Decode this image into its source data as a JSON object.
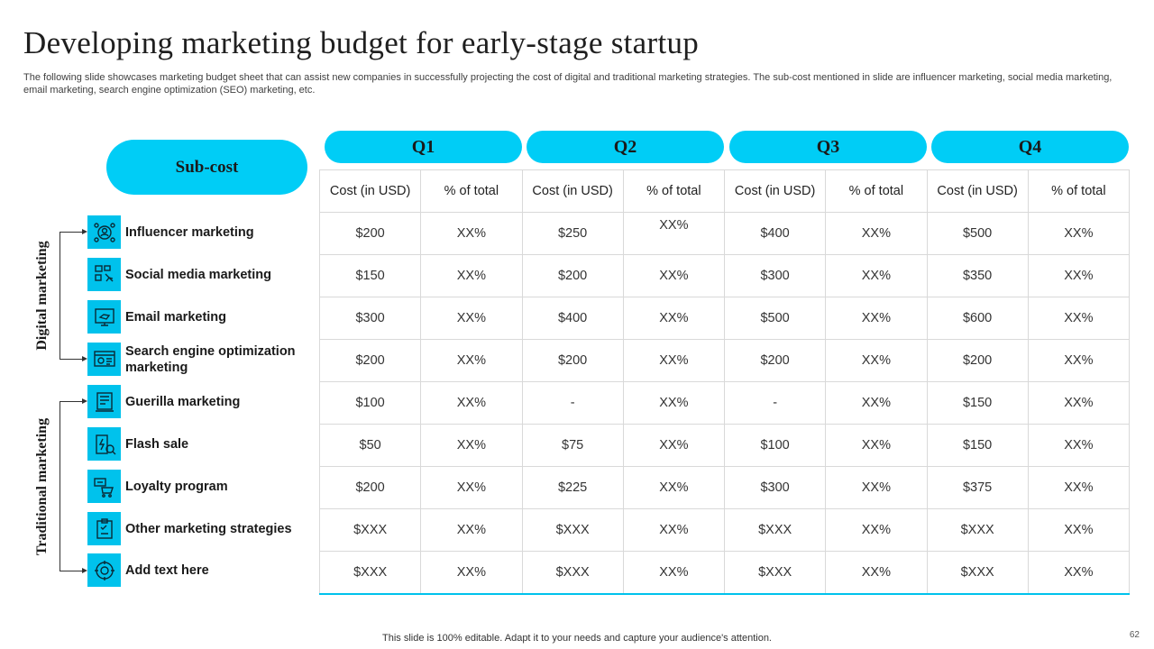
{
  "title": "Developing marketing budget for early-stage startup",
  "subtitle": "The following slide showcases marketing budget sheet that can assist new companies in successfully projecting the cost of digital and traditional marketing strategies. The sub-cost mentioned in slide are influencer marketing, social media marketing, email marketing, search engine optimization (SEO) marketing, etc.",
  "subcost_label": "Sub-cost",
  "quarters": [
    "Q1",
    "Q2",
    "Q3",
    "Q4"
  ],
  "column_headers": {
    "cost": "Cost (in USD)",
    "pct": "% of total"
  },
  "groups": {
    "digital": "Digital marketing",
    "traditional": "Traditional marketing"
  },
  "rows": [
    {
      "label": "Influencer marketing",
      "icon": "influencer-icon",
      "values": [
        "$200",
        "XX%",
        "$250",
        "XX%",
        "$400",
        "XX%",
        "$500",
        "XX%"
      ]
    },
    {
      "label": "Social media marketing",
      "icon": "social-media-icon",
      "values": [
        "$150",
        "XX%",
        "$200",
        "XX%",
        "$300",
        "XX%",
        "$350",
        "XX%"
      ]
    },
    {
      "label": "Email marketing",
      "icon": "email-icon",
      "values": [
        "$300",
        "XX%",
        "$400",
        "XX%",
        "$500",
        "XX%",
        "$600",
        "XX%"
      ]
    },
    {
      "label": "Search engine optimization marketing",
      "icon": "seo-icon",
      "values": [
        "$200",
        "XX%",
        "$200",
        "XX%",
        "$200",
        "XX%",
        "$200",
        "XX%"
      ]
    },
    {
      "label": "Guerilla marketing",
      "icon": "guerilla-icon",
      "values": [
        "$100",
        "XX%",
        "-",
        "XX%",
        "-",
        "XX%",
        "$150",
        "XX%"
      ]
    },
    {
      "label": "Flash sale",
      "icon": "flash-sale-icon",
      "values": [
        "$50",
        "XX%",
        "$75",
        "XX%",
        "$100",
        "XX%",
        "$150",
        "XX%"
      ]
    },
    {
      "label": "Loyalty program",
      "icon": "loyalty-icon",
      "values": [
        "$200",
        "XX%",
        "$225",
        "XX%",
        "$300",
        "XX%",
        "$375",
        "XX%"
      ]
    },
    {
      "label": "Other marketing strategies",
      "icon": "strategy-icon",
      "values": [
        "$XXX",
        "XX%",
        "$XXX",
        "XX%",
        "$XXX",
        "XX%",
        "$XXX",
        "XX%"
      ]
    },
    {
      "label": "Add  text here",
      "icon": "add-text-icon",
      "values": [
        "$XXX",
        "XX%",
        "$XXX",
        "XX%",
        "$XXX",
        "XX%",
        "$XXX",
        "XX%"
      ]
    }
  ],
  "footer": "This slide is 100% editable. Adapt it to your needs and capture your audience's attention.",
  "page_number": "62",
  "colors": {
    "accent": "#00cdf6",
    "icon_bg": "#00c2ec"
  }
}
